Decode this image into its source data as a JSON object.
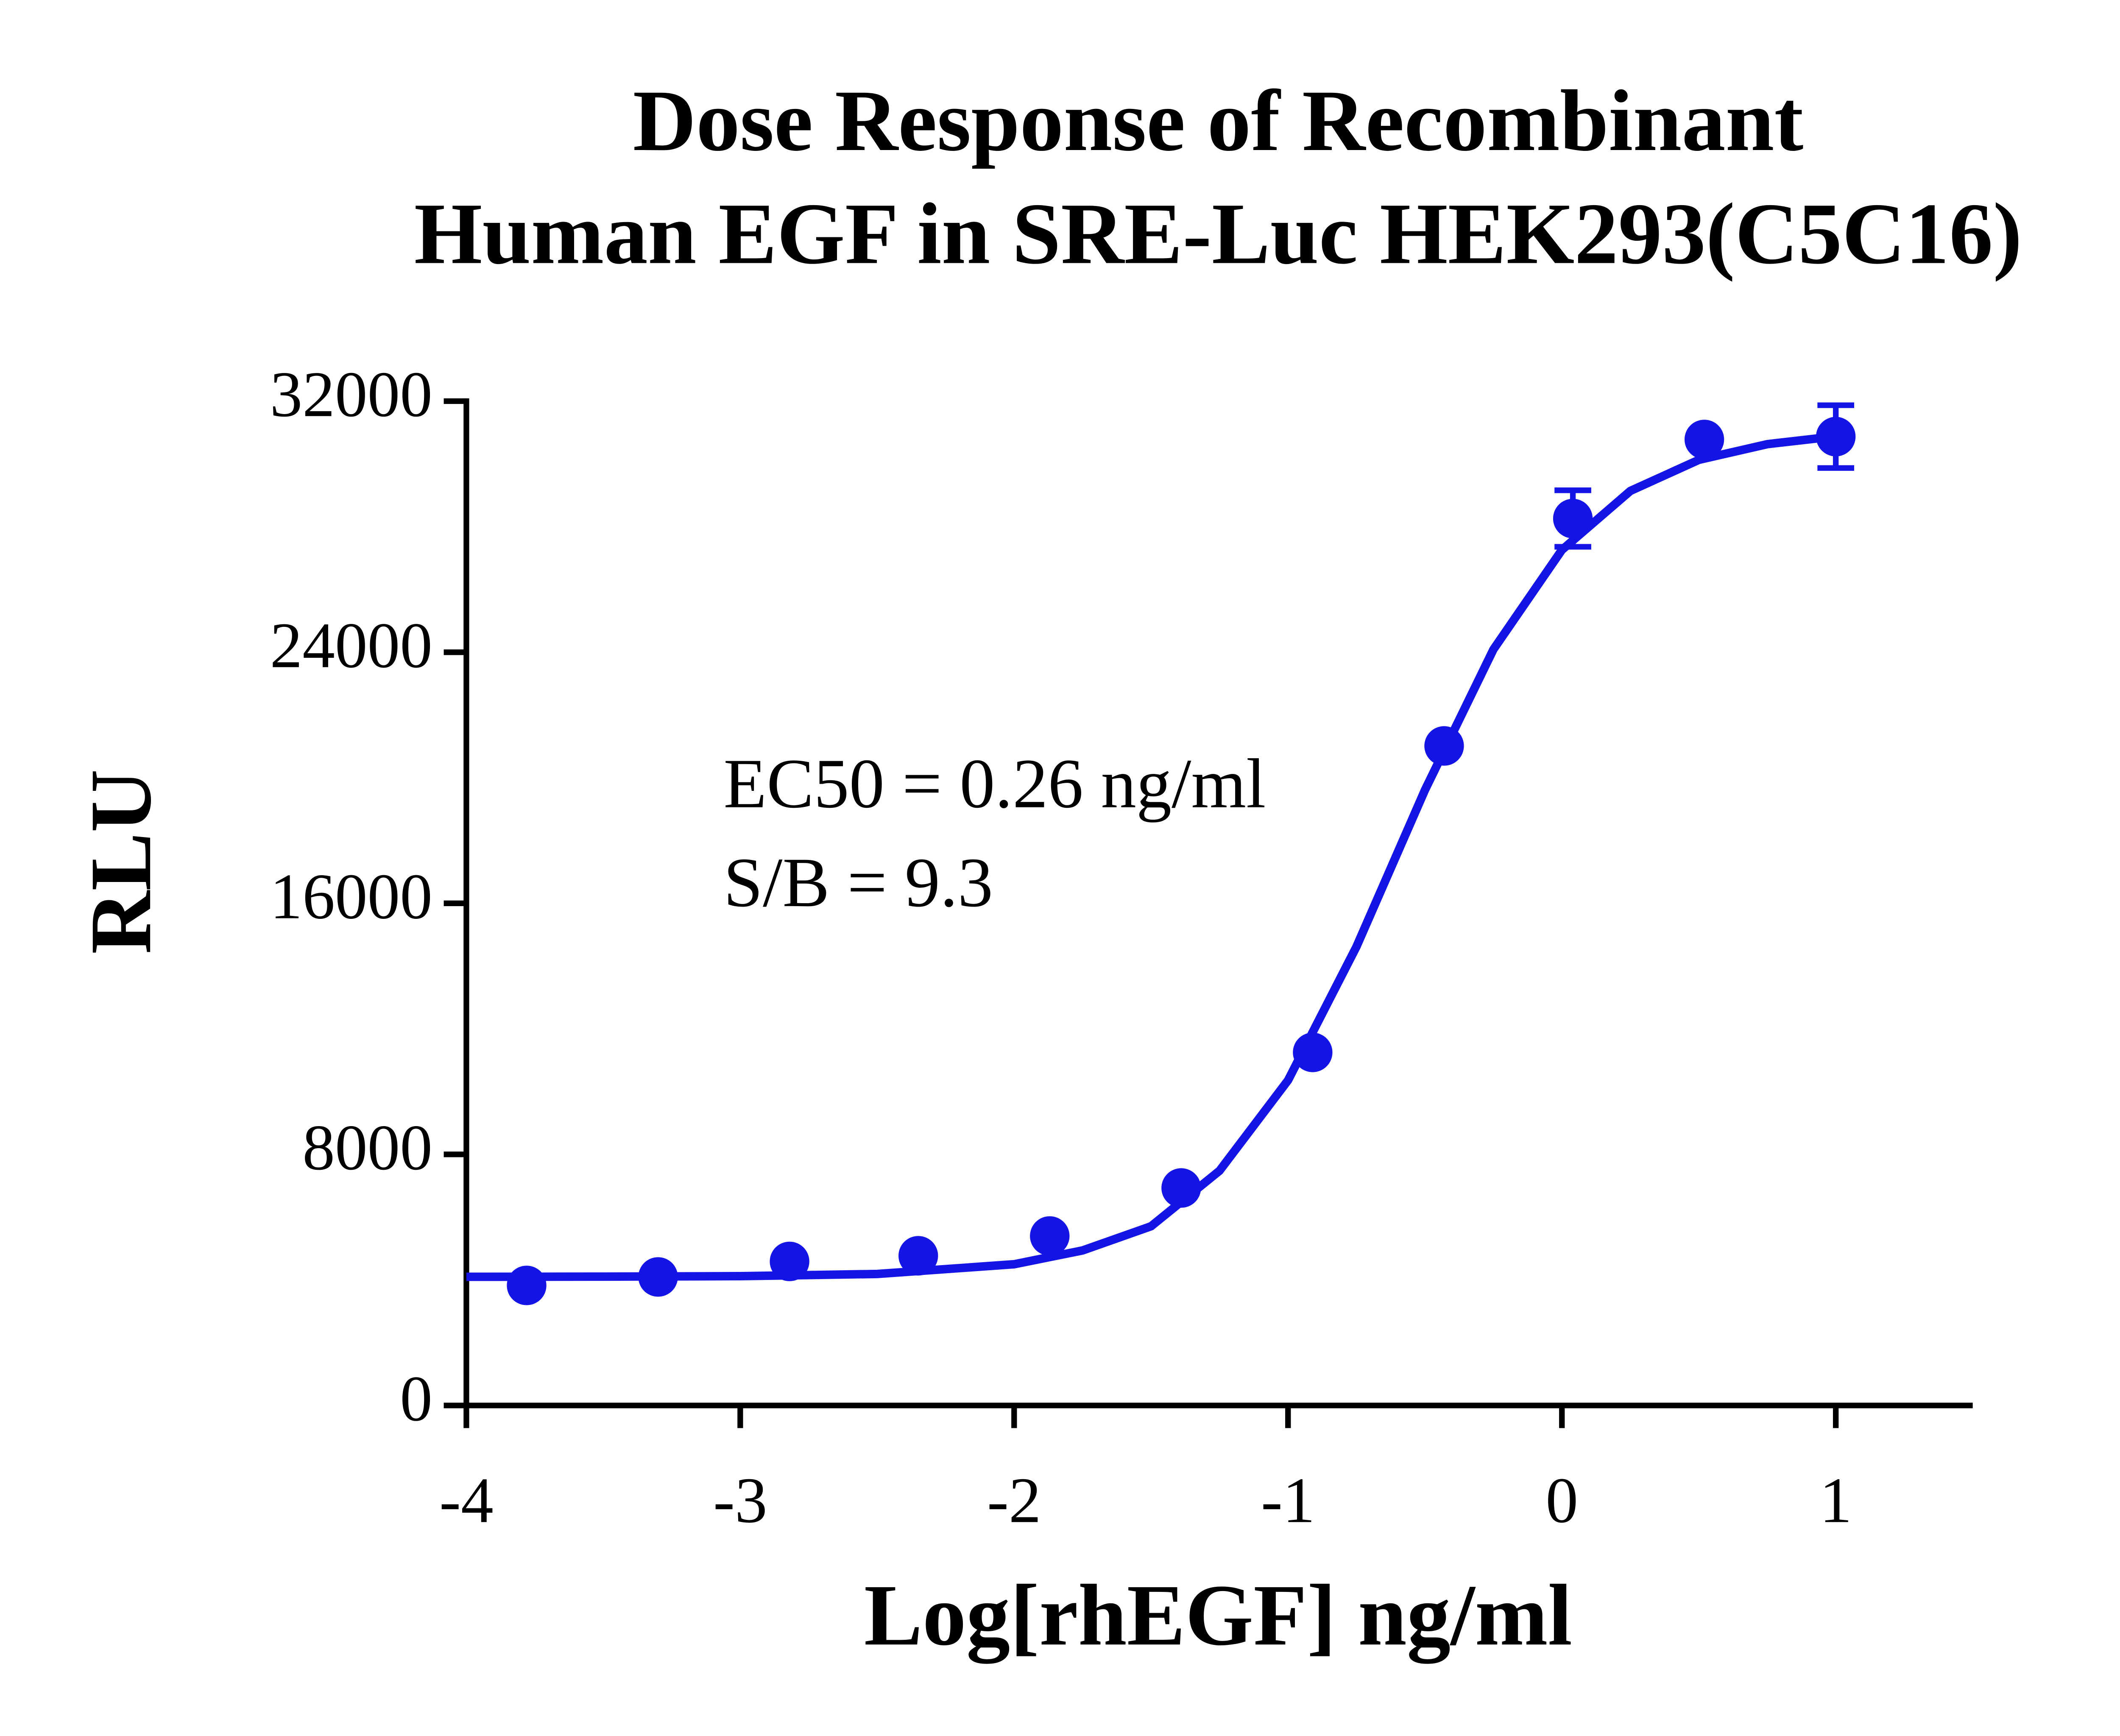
{
  "chart_data": {
    "type": "scatter",
    "title": [
      "Dose Response of Recombinant",
      "Human EGF in SRE-Luc HEK293(C5C16)"
    ],
    "x_label": "Log[rhEGF] ng/ml",
    "y_label": "RLU",
    "annotations": [
      "EC50 = 0.26 ng/ml",
      "S/B = 9.3"
    ],
    "color": "#1414e6",
    "xlim": [
      -4,
      1.5
    ],
    "xticks": [
      -4,
      -3,
      -2,
      -1,
      0,
      1
    ],
    "ylim": [
      0,
      32000
    ],
    "yticks": [
      0,
      8000,
      16000,
      24000,
      32000
    ],
    "points": {
      "x": [
        -3.78,
        -3.3,
        -2.82,
        -2.35,
        -1.87,
        -1.39,
        -0.91,
        -0.43,
        0.04,
        0.52,
        1.0
      ],
      "values": [
        3825,
        4095,
        4590,
        4770,
        5400,
        6930,
        11250,
        21015,
        28260,
        30780,
        30870
      ],
      "errors": [
        null,
        null,
        null,
        null,
        null,
        null,
        null,
        null,
        900,
        null,
        1000
      ]
    },
    "fit": {
      "x": [
        -4,
        -3.5,
        -3,
        -2.5,
        -2,
        -1.75,
        -1.5,
        -1.25,
        -1,
        -0.75,
        -0.5,
        -0.25,
        0,
        0.25,
        0.5,
        0.75,
        1
      ],
      "values": [
        4100,
        4105,
        4120,
        4190,
        4500,
        4940,
        5710,
        7480,
        10360,
        14620,
        19610,
        24090,
        27260,
        29140,
        30130,
        30630,
        30880
      ]
    }
  }
}
